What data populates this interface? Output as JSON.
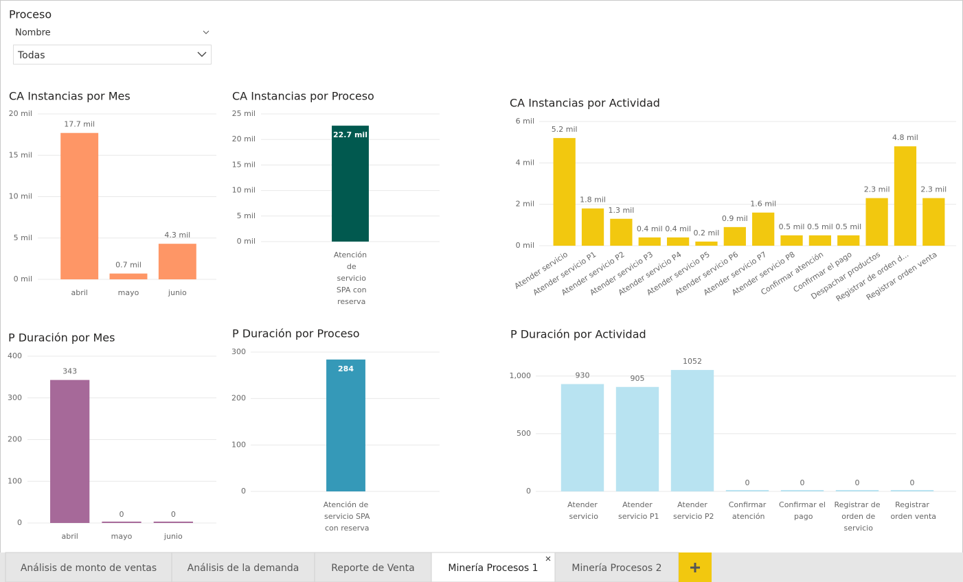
{
  "filter": {
    "title": "Proceso",
    "field": "Nombre",
    "value": "Todas"
  },
  "chart_data": [
    {
      "type": "bar",
      "title": "CA Instancias por Mes",
      "categories": [
        "abril",
        "mayo",
        "junio"
      ],
      "values": [
        17700,
        700,
        4300
      ],
      "value_labels": [
        "17.7 mil",
        "0.7 mil",
        "4.3 mil"
      ],
      "color": "#fe9666",
      "ylim": [
        0,
        20000
      ],
      "yticks": [
        {
          "value": 0,
          "label": "0 mil"
        },
        {
          "value": 5000,
          "label": "5 mil"
        },
        {
          "value": 10000,
          "label": "10 mil"
        },
        {
          "value": 15000,
          "label": "15 mil"
        },
        {
          "value": 20000,
          "label": "20 mil"
        }
      ],
      "grid": true
    },
    {
      "type": "bar",
      "title": "CA Instancias por Proceso",
      "categories": [
        "Atención de servicio SPA con reserva"
      ],
      "values": [
        22700
      ],
      "value_labels": [
        "22.7 mil"
      ],
      "color": "#01594f",
      "ylim": [
        0,
        25000
      ],
      "yticks": [
        {
          "value": 0,
          "label": "0 mil"
        },
        {
          "value": 5000,
          "label": "5 mil"
        },
        {
          "value": 10000,
          "label": "10 mil"
        },
        {
          "value": 15000,
          "label": "15 mil"
        },
        {
          "value": 20000,
          "label": "20 mil"
        },
        {
          "value": 25000,
          "label": "25 mil"
        }
      ],
      "grid": true
    },
    {
      "type": "bar",
      "title": "CA Instancias por Actividad",
      "categories": [
        "Atender servicio",
        "Atender servicio P1",
        "Atender servicio P2",
        "Atender servicio P3",
        "Atender servicio P4",
        "Atender servicio P5",
        "Atender servicio P6",
        "Atender servicio P7",
        "Atender servicio P8",
        "Confirmar atención",
        "Confirmar el pago",
        "Despachar productos",
        "Registrar de orden d...",
        "Registrar orden venta"
      ],
      "values": [
        5200,
        1800,
        1300,
        400,
        400,
        200,
        900,
        1600,
        500,
        500,
        500,
        2300,
        4800,
        2300
      ],
      "value_labels": [
        "5.2 mil",
        "1.8 mil",
        "1.3 mil",
        "0.4 mil",
        "0.4 mil",
        "0.2 mil",
        "0.9 mil",
        "1.6 mil",
        "0.5 mil",
        "0.5 mil",
        "0.5 mil",
        "2.3 mil",
        "4.8 mil",
        "2.3 mil"
      ],
      "color": "#f2c80f",
      "ylim": [
        0,
        6000
      ],
      "yticks": [
        {
          "value": 0,
          "label": "0 mil"
        },
        {
          "value": 2000,
          "label": "2 mil"
        },
        {
          "value": 4000,
          "label": "4 mil"
        },
        {
          "value": 6000,
          "label": "6 mil"
        }
      ],
      "grid": true
    },
    {
      "type": "bar",
      "title": "P Duración por Mes",
      "categories": [
        "abril",
        "mayo",
        "junio"
      ],
      "values": [
        343,
        0,
        0
      ],
      "color": "#a66999",
      "ylim": [
        0,
        400
      ],
      "yticks": [
        0,
        100,
        200,
        300,
        400
      ],
      "grid": true
    },
    {
      "type": "bar",
      "title": "P Duración por Proceso",
      "categories": [
        "Atención de servicio SPA con reserva"
      ],
      "values": [
        284
      ],
      "color": "#3599b8",
      "ylim": [
        0,
        300
      ],
      "yticks": [
        0,
        100,
        200,
        300
      ],
      "grid": true
    },
    {
      "type": "bar",
      "title": "P Duración por Actividad",
      "categories": [
        "Atender servicio",
        "Atender servicio P1",
        "Atender servicio P2",
        "Confirmar atención",
        "Confirmar el pago",
        "Registrar de orden de servicio",
        "Registrar orden venta"
      ],
      "values": [
        930,
        905,
        1052,
        0,
        0,
        0,
        0
      ],
      "color": "#b8e3f1",
      "ylim": [
        0,
        1100
      ],
      "yticks": [
        0,
        500,
        {
          "value": 1000,
          "label": "1,000"
        }
      ],
      "grid": true
    }
  ],
  "tabs": [
    "Análisis de monto de ventas",
    "Análisis de la demanda",
    "Reporte de Venta",
    "Minería Procesos 1",
    "Minería Procesos 2"
  ]
}
